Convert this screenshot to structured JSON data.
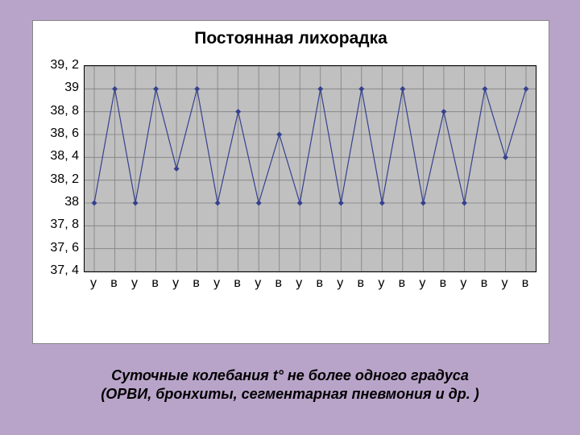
{
  "chart": {
    "type": "line",
    "title": "Постоянная лихорадка",
    "title_fontsize": 21,
    "background_color": "#b9a4c9",
    "box_background": "#ffffff",
    "plot_background": "#c0c0c0",
    "grid_color": "#808080",
    "line_color": "#35418f",
    "marker_color": "#35418f",
    "marker_size": 3.5,
    "line_width": 1.2,
    "ylim": [
      37.4,
      39.2
    ],
    "y_ticks": [
      39.2,
      39,
      38.8,
      38.6,
      38.4,
      38.2,
      38,
      37.8,
      37.6,
      37.4
    ],
    "y_tick_labels": [
      "39, 2",
      "39",
      "38, 8",
      "38, 6",
      "38, 4",
      "38, 2",
      "38",
      "37, 8",
      "37, 6",
      "37, 4"
    ],
    "x_labels": [
      "у",
      "в",
      "у",
      "в",
      "у",
      "в",
      "у",
      "в",
      "у",
      "в",
      "у",
      "в",
      "у",
      "в",
      "у",
      "в",
      "у",
      "в",
      "у",
      "в",
      "у",
      "в"
    ],
    "values": [
      38,
      39,
      38,
      39,
      38.3,
      39,
      38,
      38.8,
      38,
      38.6,
      38,
      39,
      38,
      39,
      38,
      39,
      38,
      38.8,
      38,
      39,
      38.4,
      39
    ],
    "label_fontsize": 16
  },
  "caption_line1": "Суточные колебания t° не более одного градуса",
  "caption_line2": "(ОРВИ, бронхиты, сегментарная пневмония и др. )"
}
